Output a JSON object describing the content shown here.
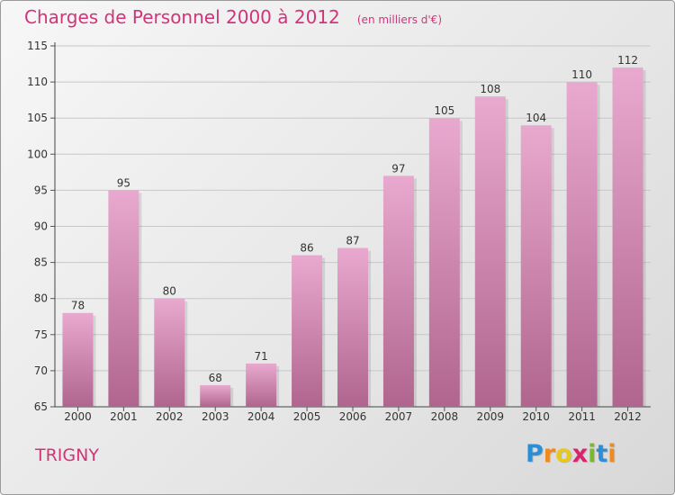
{
  "chart_data": {
    "type": "bar",
    "title": "Charges de Personnel 2000 à 2012",
    "subtitle": "(en milliers d'€)",
    "categories": [
      "2000",
      "2001",
      "2002",
      "2003",
      "2004",
      "2005",
      "2006",
      "2007",
      "2008",
      "2009",
      "2010",
      "2011",
      "2012"
    ],
    "values": [
      78,
      95,
      80,
      68,
      71,
      86,
      87,
      97,
      105,
      108,
      104,
      110,
      112
    ],
    "ylim": [
      65,
      115
    ],
    "yticks": [
      65,
      70,
      75,
      80,
      85,
      90,
      95,
      100,
      105,
      110,
      115
    ],
    "grid": "horizontal",
    "xlabel": "",
    "ylabel": ""
  },
  "place_name": "TRIGNY",
  "logo": {
    "letters": [
      "P",
      "r",
      "o",
      "x",
      "i",
      "t",
      "i"
    ],
    "colors": [
      "#2a8fd6",
      "#f08a1c",
      "#e8c91a",
      "#d8246c",
      "#7ab929",
      "#2a8fd6",
      "#f08a1c"
    ]
  },
  "colors": {
    "bar_top": "#e9a9cf",
    "bar_bottom": "#b0658e",
    "title": "#d0357a"
  }
}
